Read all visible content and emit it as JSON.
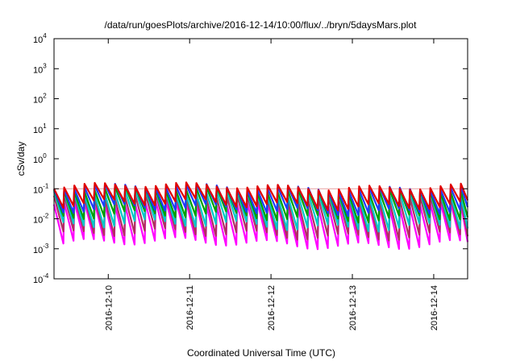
{
  "chart_data": {
    "type": "line",
    "title": "/data/run/goesPlots/archive/2016-12-14/10:00/flux/../bryn/5daysMars.plot",
    "xlabel": "Coordinated Universal Time (UTC)",
    "ylabel": "cSv/day",
    "x_start": "2016-12-09T08:00",
    "x_end": "2016-12-14T10:00",
    "x_ticks": [
      "2016-12-10",
      "2016-12-11",
      "2016-12-12",
      "2016-12-13",
      "2016-12-14"
    ],
    "y_scale": "log",
    "ylim": [
      0.0001,
      10000
    ],
    "y_ticks": [
      {
        "base": "10",
        "exp": "-4"
      },
      {
        "base": "10",
        "exp": "-3"
      },
      {
        "base": "10",
        "exp": "-2"
      },
      {
        "base": "10",
        "exp": "-1"
      },
      {
        "base": "10",
        "exp": "0"
      },
      {
        "base": "10",
        "exp": "1"
      },
      {
        "base": "10",
        "exp": "2"
      },
      {
        "base": "10",
        "exp": "3"
      },
      {
        "base": "10",
        "exp": "4"
      }
    ],
    "reference_line": {
      "y": 0.1,
      "color": "#e8a0a0"
    },
    "grid": false,
    "pattern_note_series": [
      {
        "color": "#ff00ff",
        "peak": 0.03,
        "trough": 0.0015
      },
      {
        "color": "#b03060",
        "peak": 0.05,
        "trough": 0.003
      },
      {
        "color": "#00c8c8",
        "peak": 0.07,
        "trough": 0.006
      },
      {
        "color": "#00a000",
        "peak": 0.09,
        "trough": 0.012
      },
      {
        "color": "#1e3cff",
        "peak": 0.11,
        "trough": 0.02
      },
      {
        "color": "#e00000",
        "peak": 0.12,
        "trough": 0.03
      }
    ]
  }
}
